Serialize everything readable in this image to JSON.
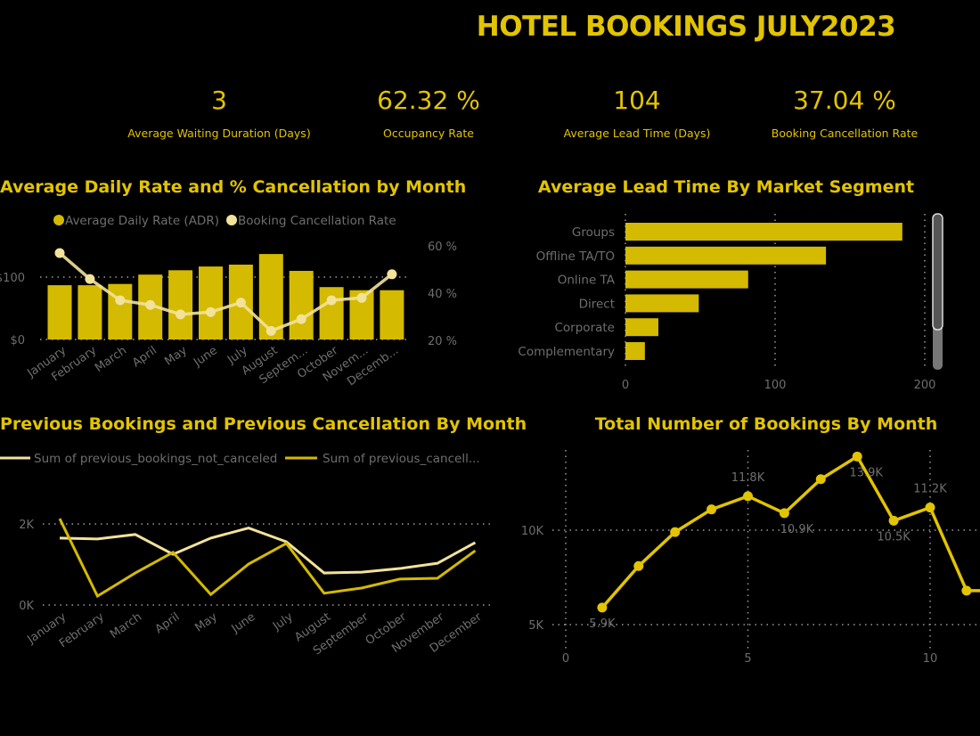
{
  "header": {
    "title": "HOTEL BOOKINGS JULY2023"
  },
  "kpis": [
    {
      "value": "3",
      "label": "Average Waiting Duration (Days)"
    },
    {
      "value": "62.32 %",
      "label": "Occupancy Rate"
    },
    {
      "value": "104",
      "label": "Average Lead Time (Days)"
    },
    {
      "value": "37.04 %",
      "label": "Booking Cancellation Rate"
    }
  ],
  "colors": {
    "accent": "#E2C400",
    "bar": "#D4BA00",
    "light_line": "#F2E29A",
    "axis_text": "#6e6e6e",
    "grid": "#9a9a9a",
    "background": "#000000"
  },
  "chart_data": [
    {
      "type": "bar+line",
      "title": "Average Daily Rate and % Cancellation by Month",
      "categories": [
        "January",
        "February",
        "March",
        "April",
        "May",
        "June",
        "July",
        "August",
        "Septem...",
        "October",
        "Novem...",
        "Decemb..."
      ],
      "series": [
        {
          "name": "Average Daily Rate (ADR)",
          "type": "bar",
          "axis": "left",
          "values": [
            87,
            87,
            89,
            104,
            111,
            117,
            120,
            137,
            110,
            84,
            79,
            79
          ]
        },
        {
          "name": "Booking Cancellation Rate",
          "type": "line",
          "axis": "right",
          "values": [
            57,
            46,
            37,
            35,
            31,
            32,
            36,
            24,
            29,
            37,
            38,
            48
          ]
        }
      ],
      "left_ticks": [
        "$0",
        "$100"
      ],
      "left_tick_values": [
        0,
        100
      ],
      "ylim_left": [
        0,
        150
      ],
      "right_ticks": [
        "20 %",
        "40 %",
        "60 %"
      ],
      "right_tick_values": [
        20,
        40,
        60
      ],
      "ylim_right": [
        20,
        60
      ],
      "legend": "top",
      "grid": true
    },
    {
      "type": "bar",
      "orientation": "horizontal",
      "title": "Average Lead Time By Market Segment",
      "categories": [
        "Groups",
        "Offline TA/TO",
        "Online TA",
        "Direct",
        "Corporate",
        "Complementary"
      ],
      "values": [
        185,
        134,
        82,
        49,
        22,
        13
      ],
      "x_ticks": [
        "0",
        "100",
        "200"
      ],
      "x_tick_values": [
        0,
        100,
        200
      ],
      "xlim": [
        0,
        200
      ],
      "grid": true
    },
    {
      "type": "line",
      "title": "Previous Bookings and Previous Cancellation By Month",
      "categories": [
        "January",
        "February",
        "March",
        "April",
        "May",
        "June",
        "July",
        "August",
        "September",
        "October",
        "November",
        "December"
      ],
      "series": [
        {
          "name": "Sum of previous_bookings_not_canceled",
          "values": [
            1650,
            1630,
            1740,
            1250,
            1650,
            1900,
            1560,
            790,
            810,
            900,
            1030,
            1540
          ]
        },
        {
          "name": "Sum of previous_cancell...",
          "values": [
            2130,
            220,
            790,
            1300,
            260,
            1010,
            1520,
            290,
            420,
            640,
            660,
            1340
          ]
        }
      ],
      "y_ticks": [
        "0K",
        "2K"
      ],
      "y_tick_values": [
        0,
        2000
      ],
      "legend": "top",
      "grid": true
    },
    {
      "type": "line",
      "title": "Total Number of Bookings By Month",
      "x": [
        1,
        2,
        3,
        4,
        5,
        6,
        7,
        8,
        9,
        10,
        11,
        12
      ],
      "values": [
        5900,
        8100,
        9900,
        11100,
        11800,
        10900,
        12700,
        13900,
        10500,
        11200,
        6800,
        6800
      ],
      "data_labels": [
        {
          "x": 1,
          "text": "5.9K",
          "position": "below"
        },
        {
          "x": 5,
          "text": "11.8K",
          "position": "above"
        },
        {
          "x": 6,
          "text": "10.9K",
          "position": "below"
        },
        {
          "x": 8,
          "text": "13.9K",
          "position": "below"
        },
        {
          "x": 9,
          "text": "10.5K",
          "position": "below"
        },
        {
          "x": 10,
          "text": "11.2K",
          "position": "above"
        }
      ],
      "x_ticks": [
        "0",
        "5",
        "10"
      ],
      "x_tick_values": [
        0,
        5,
        10
      ],
      "y_ticks": [
        "5K",
        "10K"
      ],
      "y_tick_values": [
        5000,
        10000
      ],
      "grid": true
    }
  ]
}
